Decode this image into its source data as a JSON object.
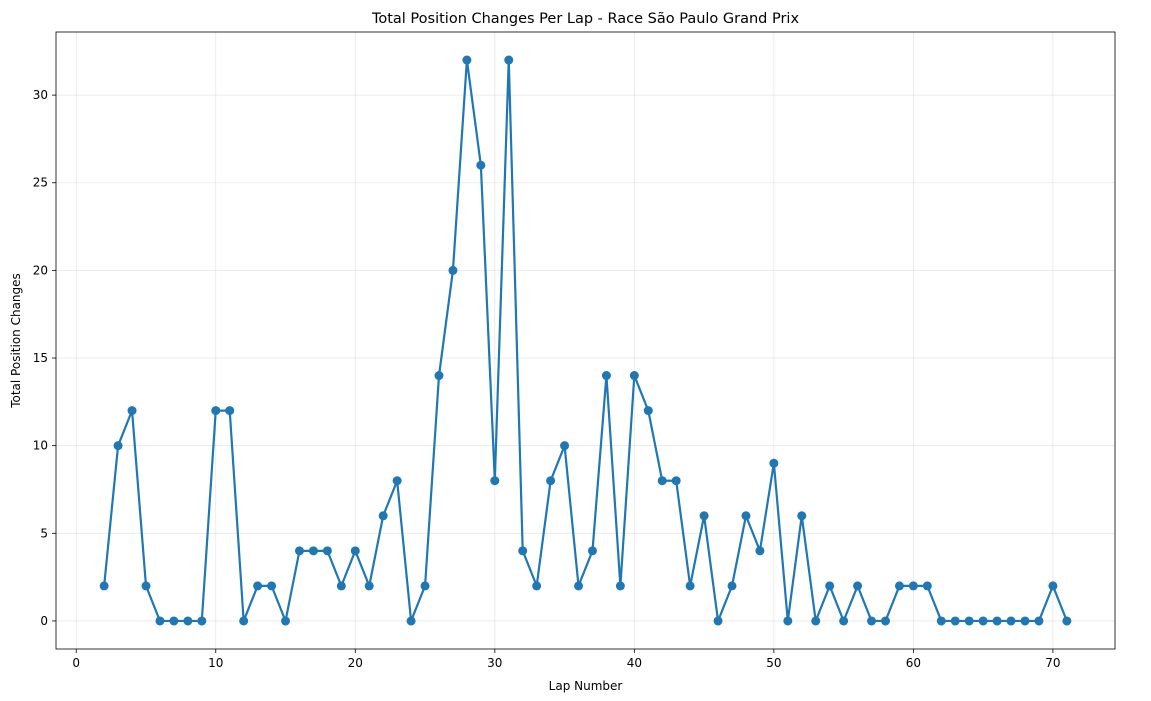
{
  "chart_data": {
    "type": "line",
    "title": "Total Position Changes Per Lap - Race São Paulo Grand Prix",
    "xlabel": "Lap Number",
    "ylabel": "Total Position Changes",
    "xlim": [
      -1.45,
      74.45
    ],
    "ylim": [
      -1.6,
      33.6
    ],
    "xticks": [
      0,
      10,
      20,
      30,
      40,
      50,
      60,
      70
    ],
    "yticks": [
      0,
      5,
      10,
      15,
      20,
      25,
      30
    ],
    "grid": true,
    "line_color": "#1f77b4",
    "marker": "circle",
    "series": [
      {
        "x": [
          2,
          3,
          4,
          5,
          6,
          7,
          8,
          9,
          10,
          11,
          12,
          13,
          14,
          15,
          16,
          17,
          18,
          19,
          20,
          21,
          22,
          23,
          24,
          25,
          26,
          27,
          28,
          29,
          30,
          31,
          32,
          33,
          34,
          35,
          36,
          37,
          38,
          39,
          40,
          41,
          42,
          43,
          44,
          45,
          46,
          47,
          48,
          49,
          50,
          51,
          52,
          53,
          54,
          55,
          56,
          57,
          58,
          59,
          60,
          61,
          62,
          63,
          64,
          65,
          66,
          67,
          68,
          69,
          70,
          71
        ],
        "values": [
          2,
          10,
          12,
          2,
          0,
          0,
          0,
          0,
          12,
          12,
          0,
          2,
          2,
          0,
          4,
          4,
          4,
          2,
          4,
          2,
          6,
          8,
          0,
          2,
          14,
          20,
          32,
          26,
          8,
          32,
          4,
          2,
          8,
          10,
          2,
          4,
          14,
          2,
          14,
          12,
          8,
          8,
          2,
          6,
          0,
          2,
          6,
          4,
          9,
          0,
          6,
          0,
          2,
          0,
          2,
          0,
          0,
          2,
          2,
          2,
          0,
          0,
          0,
          0,
          0,
          0,
          0,
          0,
          2,
          0
        ]
      }
    ]
  }
}
